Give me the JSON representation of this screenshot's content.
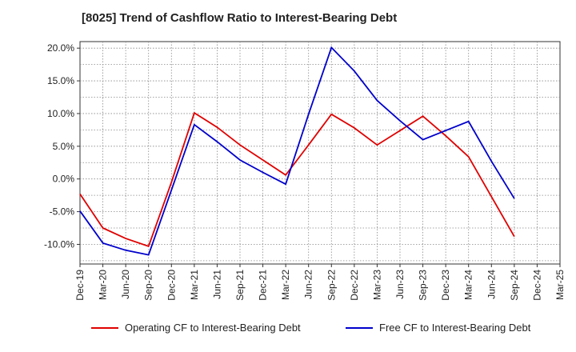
{
  "chart_data": {
    "type": "line",
    "title": "[8025]  Trend of Cashflow Ratio to Interest-Bearing Debt",
    "xlabel": "",
    "ylabel": "",
    "x": [
      "Dec-19",
      "Mar-20",
      "Jun-20",
      "Sep-20",
      "Dec-20",
      "Mar-21",
      "Jun-21",
      "Sep-21",
      "Dec-21",
      "Mar-22",
      "Jun-22",
      "Sep-22",
      "Dec-22",
      "Mar-23",
      "Jun-23",
      "Sep-23",
      "Dec-23",
      "Mar-24",
      "Jun-24",
      "Sep-24",
      "Dec-24",
      "Mar-25"
    ],
    "ylim": [
      -13,
      21
    ],
    "yticks": [
      -10,
      -5,
      0,
      5,
      10,
      15,
      20
    ],
    "ytick_labels": [
      "-10.0%",
      "-5.0%",
      "0.0%",
      "5.0%",
      "10.0%",
      "15.0%",
      "20.0%"
    ],
    "grid": true,
    "legend_position": "bottom",
    "series": [
      {
        "name": "Operating CF to Interest-Bearing Debt",
        "color": "#e00000",
        "values": [
          -2.3,
          -7.5,
          -9.1,
          -10.3,
          -0.5,
          10.1,
          7.9,
          5.2,
          2.9,
          0.6,
          5.2,
          9.9,
          7.8,
          5.2,
          7.4,
          9.6,
          6.6,
          3.4,
          -2.7,
          -8.8,
          null,
          null
        ]
      },
      {
        "name": "Free CF to Interest-Bearing Debt",
        "color": "#0000cc",
        "values": [
          -4.9,
          -9.8,
          -10.9,
          -11.6,
          -1.7,
          8.3,
          5.7,
          2.9,
          1.0,
          -0.8,
          9.9,
          20.1,
          16.5,
          12.0,
          8.9,
          6.0,
          7.4,
          8.8,
          2.7,
          -3.0,
          null,
          null
        ]
      }
    ]
  }
}
